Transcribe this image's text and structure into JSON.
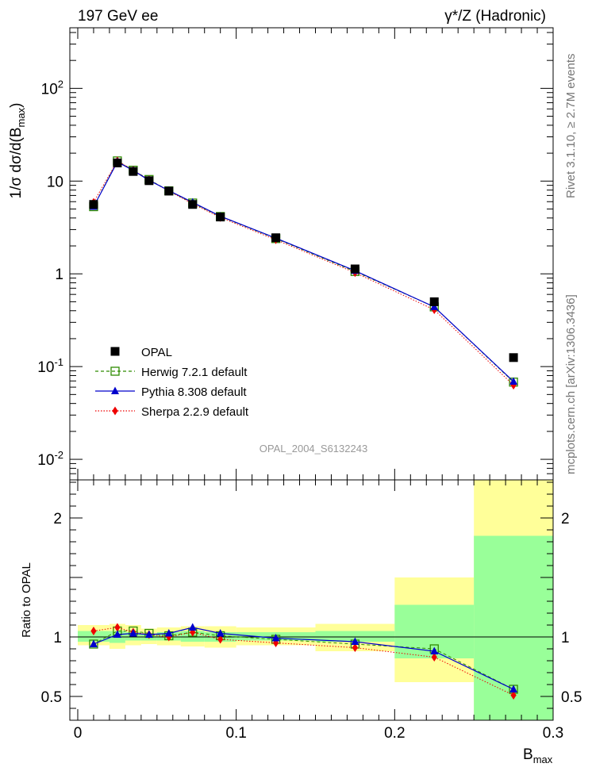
{
  "header": {
    "left": "197 GeV ee",
    "right": "γ*/Z (Hadronic)"
  },
  "side_text": {
    "top": "Rivet 3.1.10, ≥ 2.7M events",
    "bottom": "mcplots.cern.ch [arXiv:1306.3436]"
  },
  "analysis_label": "OPAL_2004_S6132243",
  "colors": {
    "data": "#000000",
    "herwig": "#2e8b00",
    "pythia": "#0000cc",
    "sherpa": "#ee0000",
    "band_inner": "#99ff99",
    "band_outer": "#ffff99"
  },
  "chart_data": [
    {
      "type": "line",
      "panel": "main",
      "ylabel": "1/σ dσ/d(B_max)",
      "yscale": "log",
      "ylim": [
        0.006,
        450
      ],
      "xlim": [
        -0.005,
        0.3
      ],
      "ytick_labels": [
        "10^-2",
        "10^-1",
        "1",
        "10",
        "10^2"
      ],
      "bins": [
        [
          0.0,
          0.02
        ],
        [
          0.02,
          0.03
        ],
        [
          0.03,
          0.04
        ],
        [
          0.04,
          0.05
        ],
        [
          0.05,
          0.065
        ],
        [
          0.065,
          0.08
        ],
        [
          0.08,
          0.1
        ],
        [
          0.1,
          0.15
        ],
        [
          0.15,
          0.2
        ],
        [
          0.2,
          0.25
        ],
        [
          0.25,
          0.3
        ]
      ],
      "x": [
        0.01,
        0.025,
        0.035,
        0.045,
        0.0575,
        0.0725,
        0.09,
        0.125,
        0.175,
        0.225,
        0.275
      ],
      "series": [
        {
          "name": "OPAL",
          "style": "data",
          "values": [
            5.6,
            15.7,
            12.7,
            10.1,
            7.8,
            5.6,
            4.1,
            2.45,
            1.13,
            0.5,
            0.125
          ]
        },
        {
          "name": "Herwig 7.2.1 default",
          "style": "herwig",
          "values": [
            5.3,
            16.5,
            13.1,
            10.4,
            7.85,
            5.8,
            4.15,
            2.4,
            1.06,
            0.44,
            0.068
          ]
        },
        {
          "name": "Pythia 8.308 default",
          "style": "pythia",
          "values": [
            5.3,
            16.1,
            13.0,
            10.2,
            7.9,
            5.9,
            4.18,
            2.43,
            1.08,
            0.44,
            0.069
          ]
        },
        {
          "name": "Sherpa 2.2.9 default",
          "style": "sherpa",
          "values": [
            5.9,
            16.5,
            13.1,
            10.3,
            7.8,
            5.7,
            4.05,
            2.33,
            1.03,
            0.41,
            0.063
          ]
        }
      ]
    },
    {
      "type": "line",
      "panel": "ratio",
      "ylabel": "Ratio to OPAL",
      "xlabel": "B_max",
      "ylim": [
        0.3,
        2.32
      ],
      "xlim": [
        -0.005,
        0.3
      ],
      "xticks": [
        0,
        0.1,
        0.2,
        0.3
      ],
      "xtick_labels": [
        "0",
        "0.1",
        "0.2",
        "0.3"
      ],
      "yticks": [
        0.5,
        1,
        2
      ],
      "ytick_labels": [
        "0.5",
        "1",
        "2"
      ],
      "bins": [
        [
          0.0,
          0.02
        ],
        [
          0.02,
          0.03
        ],
        [
          0.03,
          0.04
        ],
        [
          0.04,
          0.05
        ],
        [
          0.05,
          0.065
        ],
        [
          0.065,
          0.08
        ],
        [
          0.08,
          0.1
        ],
        [
          0.1,
          0.15
        ],
        [
          0.15,
          0.2
        ],
        [
          0.2,
          0.25
        ],
        [
          0.25,
          0.3
        ]
      ],
      "x": [
        0.01,
        0.025,
        0.035,
        0.045,
        0.0575,
        0.0725,
        0.09,
        0.125,
        0.175,
        0.225,
        0.275
      ],
      "band_inner": [
        [
          0.96,
          1.05
        ],
        [
          0.95,
          1.05
        ],
        [
          0.97,
          1.04
        ],
        [
          0.97,
          1.03
        ],
        [
          0.97,
          1.04
        ],
        [
          0.96,
          1.05
        ],
        [
          0.96,
          1.04
        ],
        [
          0.97,
          1.04
        ],
        [
          0.96,
          1.05
        ],
        [
          0.82,
          1.27
        ],
        [
          0.3,
          1.85
        ]
      ],
      "band_outer": [
        [
          0.93,
          1.1
        ],
        [
          0.9,
          1.11
        ],
        [
          0.93,
          1.1
        ],
        [
          0.94,
          1.07
        ],
        [
          0.93,
          1.08
        ],
        [
          0.92,
          1.09
        ],
        [
          0.91,
          1.09
        ],
        [
          0.93,
          1.08
        ],
        [
          0.88,
          1.11
        ],
        [
          0.62,
          1.5
        ],
        [
          0.3,
          2.32
        ]
      ],
      "series": [
        {
          "name": "Herwig 7.2.1 default",
          "style": "herwig",
          "values": [
            0.94,
            1.05,
            1.05,
            1.03,
            1.01,
            1.04,
            1.01,
            0.98,
            0.94,
            0.9,
            0.56
          ]
        },
        {
          "name": "Pythia 8.308 default",
          "style": "pythia",
          "values": [
            0.94,
            1.02,
            1.03,
            1.02,
            1.03,
            1.08,
            1.03,
            0.99,
            0.96,
            0.88,
            0.56
          ]
        },
        {
          "name": "Sherpa 2.2.9 default",
          "style": "sherpa",
          "values": [
            1.05,
            1.08,
            1.04,
            1.02,
            1.0,
            1.04,
            0.98,
            0.95,
            0.91,
            0.83,
            0.51
          ]
        }
      ]
    }
  ]
}
